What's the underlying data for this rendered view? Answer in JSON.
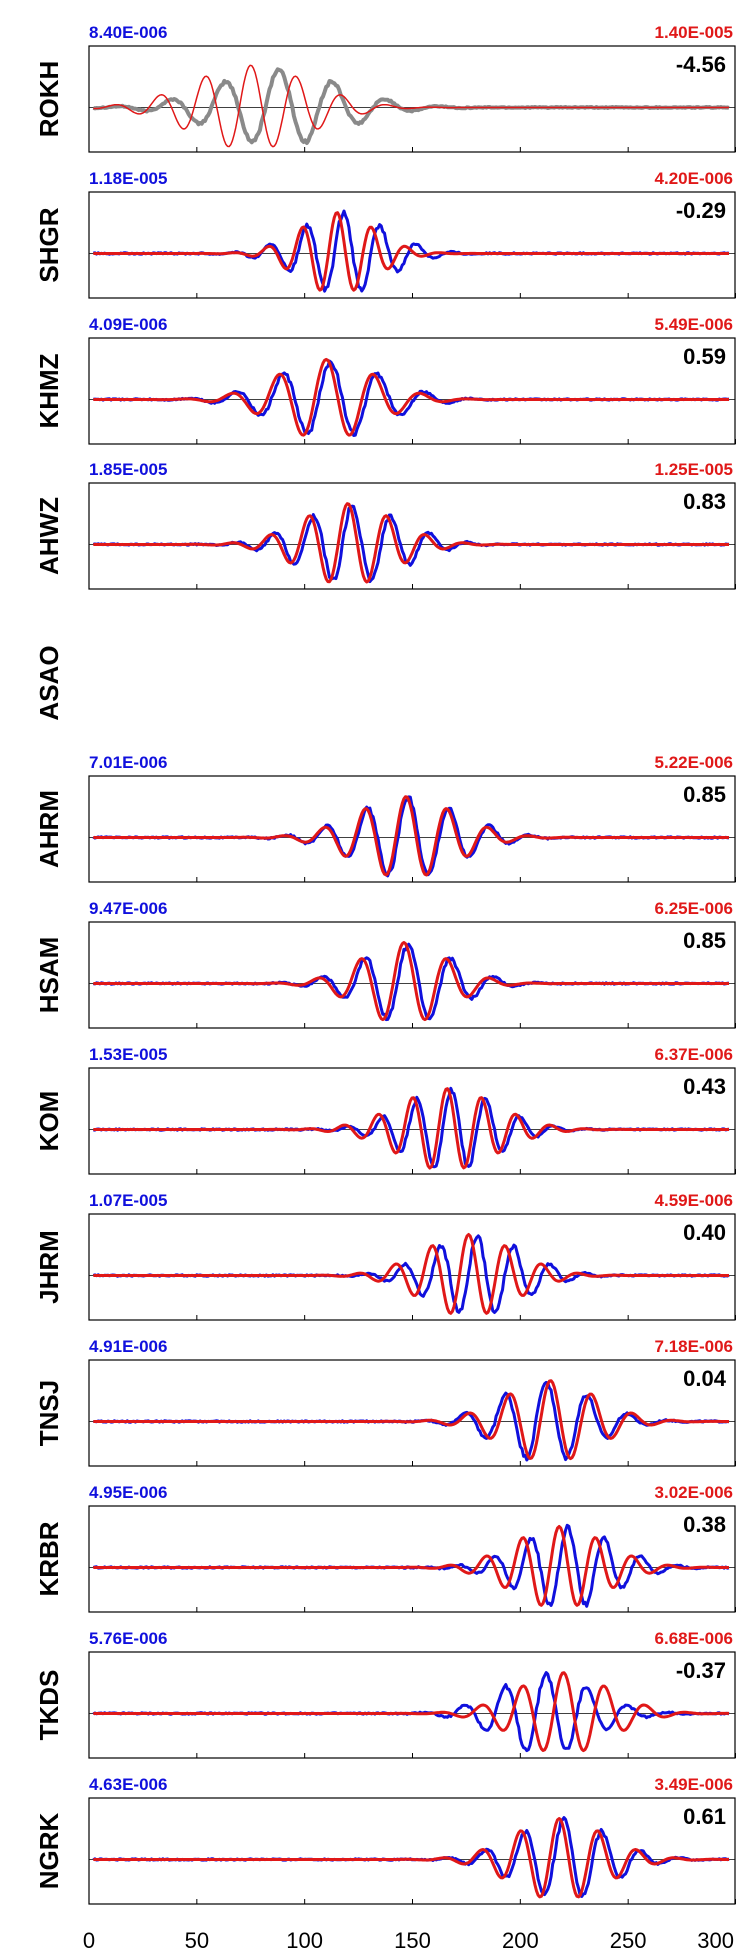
{
  "header_text": "",
  "colors": {
    "observed": "#1010dd",
    "synthetic": "#e01818",
    "excluded": "#8a8a8a"
  },
  "chart_data": {
    "type": "line",
    "xlim": [
      0,
      300
    ],
    "x_ticks": [
      0,
      50,
      100,
      150,
      200,
      250,
      300
    ],
    "x_tick_labels": [
      "0",
      "50",
      "100",
      "150",
      "200",
      "250",
      "300"
    ],
    "panels": [
      {
        "station": "ROKH",
        "obs_amp": "8.40E-006",
        "syn_amp": "1.40E-005",
        "correlation": "-4.56",
        "excluded": true,
        "obs_wave": {
          "center": 88,
          "width": 40,
          "period": 25,
          "amp": 0.85,
          "noise": 0.04
        },
        "syn_wave": {
          "center": 75,
          "width": 38,
          "period": 21,
          "amp": 0.95,
          "noise": 0.0
        }
      },
      {
        "station": "SHGR",
        "obs_amp": "1.18E-005",
        "syn_amp": "4.20E-006",
        "correlation": "-0.29",
        "excluded": false,
        "obs_wave": {
          "center": 118,
          "width": 28,
          "period": 17,
          "amp": 0.9,
          "noise": 0.05
        },
        "syn_wave": {
          "center": 115,
          "width": 24,
          "period": 16,
          "amp": 0.92,
          "noise": 0.0
        }
      },
      {
        "station": "KHMZ",
        "obs_amp": "4.09E-006",
        "syn_amp": "5.49E-006",
        "correlation": "0.59",
        "excluded": false,
        "obs_wave": {
          "center": 112,
          "width": 35,
          "period": 22,
          "amp": 0.85,
          "noise": 0.05
        },
        "syn_wave": {
          "center": 110,
          "width": 32,
          "period": 22,
          "amp": 0.9,
          "noise": 0.0
        }
      },
      {
        "station": "AHWZ",
        "obs_amp": "1.85E-005",
        "syn_amp": "1.25E-005",
        "correlation": "0.83",
        "excluded": false,
        "obs_wave": {
          "center": 122,
          "width": 32,
          "period": 18,
          "amp": 0.88,
          "noise": 0.05
        },
        "syn_wave": {
          "center": 120,
          "width": 30,
          "period": 18,
          "amp": 0.92,
          "noise": 0.0
        }
      },
      {
        "station": "ASAO",
        "obs_amp": "",
        "syn_amp": "",
        "correlation": "",
        "excluded": false,
        "empty": true
      },
      {
        "station": "AHRM",
        "obs_amp": "7.01E-006",
        "syn_amp": "5.22E-006",
        "correlation": "0.85",
        "excluded": false,
        "obs_wave": {
          "center": 148,
          "width": 34,
          "period": 19,
          "amp": 0.9,
          "noise": 0.05
        },
        "syn_wave": {
          "center": 147,
          "width": 32,
          "period": 19,
          "amp": 0.92,
          "noise": 0.0
        }
      },
      {
        "station": "HSAM",
        "obs_amp": "9.47E-006",
        "syn_amp": "6.25E-006",
        "correlation": "0.85",
        "excluded": false,
        "obs_wave": {
          "center": 148,
          "width": 30,
          "period": 20,
          "amp": 0.88,
          "noise": 0.05
        },
        "syn_wave": {
          "center": 146,
          "width": 28,
          "period": 20,
          "amp": 0.92,
          "noise": 0.0
        }
      },
      {
        "station": "KOM",
        "obs_amp": "1.53E-005",
        "syn_amp": "6.37E-006",
        "correlation": "0.43",
        "excluded": false,
        "obs_wave": {
          "center": 168,
          "width": 30,
          "period": 16,
          "amp": 0.9,
          "noise": 0.05
        },
        "syn_wave": {
          "center": 166,
          "width": 32,
          "period": 16,
          "amp": 0.92,
          "noise": 0.0
        }
      },
      {
        "station": "JHRM",
        "obs_amp": "1.07E-005",
        "syn_amp": "4.59E-006",
        "correlation": "0.40",
        "excluded": false,
        "obs_wave": {
          "center": 180,
          "width": 30,
          "period": 17,
          "amp": 0.9,
          "noise": 0.05
        },
        "syn_wave": {
          "center": 176,
          "width": 30,
          "period": 17,
          "amp": 0.92,
          "noise": 0.0
        }
      },
      {
        "station": "TNSJ",
        "obs_amp": "4.91E-006",
        "syn_amp": "7.18E-006",
        "correlation": "0.04",
        "excluded": false,
        "obs_wave": {
          "center": 212,
          "width": 30,
          "period": 19,
          "amp": 0.9,
          "noise": 0.05
        },
        "syn_wave": {
          "center": 214,
          "width": 30,
          "period": 19,
          "amp": 0.92,
          "noise": 0.0
        }
      },
      {
        "station": "KRBR",
        "obs_amp": "4.95E-006",
        "syn_amp": "3.02E-006",
        "correlation": "0.38",
        "excluded": false,
        "obs_wave": {
          "center": 222,
          "width": 30,
          "period": 17,
          "amp": 0.9,
          "noise": 0.05
        },
        "syn_wave": {
          "center": 218,
          "width": 30,
          "period": 17,
          "amp": 0.92,
          "noise": 0.0
        }
      },
      {
        "station": "TKDS",
        "obs_amp": "5.76E-006",
        "syn_amp": "6.68E-006",
        "correlation": "-0.37",
        "excluded": false,
        "obs_wave": {
          "center": 212,
          "width": 30,
          "period": 19,
          "amp": 0.9,
          "noise": 0.05
        },
        "syn_wave": {
          "center": 220,
          "width": 30,
          "period": 19,
          "amp": 0.92,
          "noise": 0.0
        }
      },
      {
        "station": "NGRK",
        "obs_amp": "4.63E-006",
        "syn_amp": "3.49E-006",
        "correlation": "0.61",
        "excluded": false,
        "obs_wave": {
          "center": 220,
          "width": 30,
          "period": 18,
          "amp": 0.9,
          "noise": 0.05
        },
        "syn_wave": {
          "center": 218,
          "width": 30,
          "period": 18,
          "amp": 0.92,
          "noise": 0.0
        }
      }
    ]
  }
}
